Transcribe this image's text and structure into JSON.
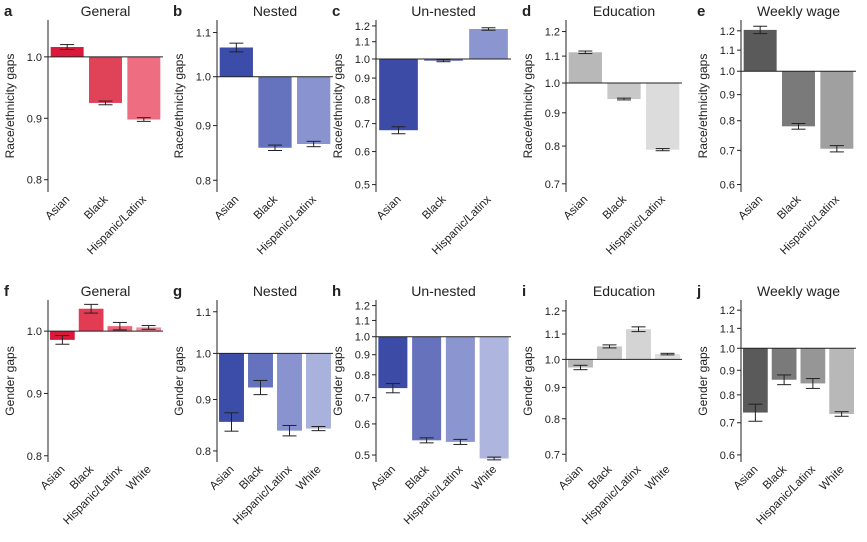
{
  "chart_data": [
    {
      "letter": "a",
      "type": "bar",
      "title": "General",
      "ylabel": "Race/ethnicity gaps",
      "scale": "linear",
      "ylim": [
        0.78,
        1.06
      ],
      "baseline": 1.0,
      "yticks": [
        0.8,
        0.9,
        1.0
      ],
      "ytick_labels": [
        "0.8",
        "0.9",
        "1.0"
      ],
      "categories": [
        "Asian",
        "Black",
        "Hispanic/Latinx"
      ],
      "values": [
        1.016,
        0.925,
        0.898
      ],
      "errors": [
        0.004,
        0.003,
        0.003
      ],
      "colors": [
        "#d8193b",
        "#e04258",
        "#ef6d80"
      ]
    },
    {
      "letter": "b",
      "type": "bar",
      "title": "Nested",
      "ylabel": "Race/ethnicity gaps",
      "scale": "log",
      "ylim": [
        0.78,
        1.13
      ],
      "baseline": 1.0,
      "yticks": [
        0.8,
        0.9,
        1.0,
        1.1
      ],
      "ytick_labels": [
        "0.8",
        "0.9",
        "1.0",
        "1.1"
      ],
      "categories": [
        "Asian",
        "Black",
        "Hispanic/Latinx"
      ],
      "values": [
        1.065,
        0.858,
        0.865
      ],
      "errors": [
        0.01,
        0.005,
        0.005
      ],
      "colors": [
        "#3b4da8",
        "#6572bd",
        "#8893cf"
      ]
    },
    {
      "letter": "c",
      "type": "bar",
      "title": "Un-nested",
      "ylabel": "Race/ethnicity gaps",
      "scale": "log",
      "ylim": [
        0.48,
        1.24
      ],
      "baseline": 1.0,
      "yticks": [
        0.5,
        0.6,
        0.7,
        0.8,
        0.9,
        1.0,
        1.1,
        1.2
      ],
      "ytick_labels": [
        "0.5",
        "0.6",
        "0.7",
        "0.8",
        "0.9",
        "1.0",
        "1.1",
        "1.2"
      ],
      "categories": [
        "Asian",
        "Black",
        "Hispanic/Latinx"
      ],
      "values": [
        0.675,
        0.99,
        1.18
      ],
      "errors": [
        0.013,
        0.005,
        0.008
      ],
      "colors": [
        "#3c4ba6",
        "#6772bd",
        "#8b95d0"
      ]
    },
    {
      "letter": "d",
      "type": "bar",
      "title": "Education",
      "ylabel": "Race/ethnicity gaps",
      "scale": "log",
      "ylim": [
        0.68,
        1.25
      ],
      "baseline": 1.0,
      "yticks": [
        0.7,
        0.8,
        0.9,
        1.0,
        1.1,
        1.2
      ],
      "ytick_labels": [
        "0.7",
        "0.8",
        "0.9",
        "1.0",
        "1.1",
        "1.2"
      ],
      "categories": [
        "Asian",
        "Black",
        "Hispanic/Latinx"
      ],
      "values": [
        1.115,
        0.945,
        0.79
      ],
      "errors": [
        0.005,
        0.003,
        0.003
      ],
      "colors": [
        "#b8b8b8",
        "#c8c8c8",
        "#dcdcdc"
      ]
    },
    {
      "letter": "e",
      "type": "bar",
      "title": "Weekly wage",
      "ylabel": "Race/ethnicity gaps",
      "scale": "log",
      "ylim": [
        0.58,
        1.26
      ],
      "baseline": 1.0,
      "yticks": [
        0.6,
        0.7,
        0.8,
        0.9,
        1.0,
        1.1,
        1.2
      ],
      "ytick_labels": [
        "0.6",
        "0.7",
        "0.8",
        "0.9",
        "1.0",
        "1.1",
        "1.2"
      ],
      "categories": [
        "Asian",
        "Black",
        "Hispanic/Latinx"
      ],
      "values": [
        1.205,
        0.78,
        0.705
      ],
      "errors": [
        0.02,
        0.01,
        0.01
      ],
      "colors": [
        "#5a5a5a",
        "#7a7a7a",
        "#a0a0a0"
      ]
    },
    {
      "letter": "f",
      "type": "bar",
      "title": "General",
      "ylabel": "Gender gaps",
      "scale": "linear",
      "ylim": [
        0.79,
        1.05
      ],
      "baseline": 1.0,
      "yticks": [
        0.8,
        0.9,
        1.0
      ],
      "ytick_labels": [
        "0.8",
        "0.9",
        "1.0"
      ],
      "categories": [
        "Asian",
        "Black",
        "Hispanic/Latinx",
        "White"
      ],
      "values": [
        0.986,
        1.036,
        1.008,
        1.006
      ],
      "errors": [
        0.007,
        0.007,
        0.006,
        0.003
      ],
      "colors": [
        "#d8193b",
        "#e23c54",
        "#ea6477",
        "#f08b9a"
      ]
    },
    {
      "letter": "g",
      "type": "bar",
      "title": "Nested",
      "ylabel": "Gender gaps",
      "scale": "log",
      "ylim": [
        0.78,
        1.13
      ],
      "baseline": 1.0,
      "yticks": [
        0.8,
        0.9,
        1.0,
        1.1
      ],
      "ytick_labels": [
        "0.8",
        "0.9",
        "1.0",
        "1.1"
      ],
      "categories": [
        "Asian",
        "Black",
        "Hispanic/Latinx",
        "White"
      ],
      "values": [
        0.855,
        0.925,
        0.838,
        0.842
      ],
      "errors": [
        0.018,
        0.015,
        0.01,
        0.004
      ],
      "colors": [
        "#3b4da8",
        "#6572bd",
        "#8893cf",
        "#a9b1dd"
      ]
    },
    {
      "letter": "h",
      "type": "bar",
      "title": "Un-nested",
      "ylabel": "Gender gaps",
      "scale": "log",
      "ylim": [
        0.48,
        1.24
      ],
      "baseline": 1.0,
      "yticks": [
        0.5,
        0.6,
        0.7,
        0.8,
        0.9,
        1.0,
        1.1,
        1.2
      ],
      "ytick_labels": [
        "0.5",
        "0.6",
        "0.7",
        "0.8",
        "0.9",
        "1.0",
        "1.1",
        "1.2"
      ],
      "categories": [
        "Asian",
        "Black",
        "Hispanic/Latinx",
        "White"
      ],
      "values": [
        0.74,
        0.545,
        0.54,
        0.49
      ],
      "errors": [
        0.02,
        0.008,
        0.008,
        0.004
      ],
      "colors": [
        "#3c4ba6",
        "#6772bd",
        "#8b95d0",
        "#aeb6df"
      ]
    },
    {
      "letter": "i",
      "type": "bar",
      "title": "Education",
      "ylabel": "Gender gaps",
      "scale": "log",
      "ylim": [
        0.68,
        1.25
      ],
      "baseline": 1.0,
      "yticks": [
        0.7,
        0.8,
        0.9,
        1.0,
        1.1,
        1.2
      ],
      "ytick_labels": [
        "0.7",
        "0.8",
        "0.9",
        "1.0",
        "1.1",
        "1.2"
      ],
      "categories": [
        "Asian",
        "Black",
        "Hispanic/Latinx",
        "White"
      ],
      "values": [
        0.97,
        1.05,
        1.12,
        1.02
      ],
      "errors": [
        0.008,
        0.006,
        0.01,
        0.003
      ],
      "colors": [
        "#b8b8b8",
        "#c6c6c6",
        "#d4d4d4",
        "#e0e0e0"
      ]
    },
    {
      "letter": "j",
      "type": "bar",
      "title": "Weekly wage",
      "ylabel": "Gender gaps",
      "scale": "log",
      "ylim": [
        0.58,
        1.26
      ],
      "baseline": 1.0,
      "yticks": [
        0.6,
        0.7,
        0.8,
        0.9,
        1.0,
        1.1,
        1.2
      ],
      "ytick_labels": [
        "0.6",
        "0.7",
        "0.8",
        "0.9",
        "1.0",
        "1.1",
        "1.2"
      ],
      "categories": [
        "Asian",
        "Black",
        "Hispanic/Latinx",
        "White"
      ],
      "values": [
        0.735,
        0.86,
        0.845,
        0.73
      ],
      "errors": [
        0.03,
        0.02,
        0.02,
        0.008
      ],
      "colors": [
        "#5a5a5a",
        "#7a7a7a",
        "#969696",
        "#b8b8b8"
      ]
    }
  ]
}
